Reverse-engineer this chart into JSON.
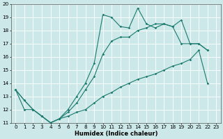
{
  "xlabel": "Humidex (Indice chaleur)",
  "xlim": [
    -0.5,
    23.5
  ],
  "ylim": [
    11,
    20
  ],
  "yticks": [
    11,
    12,
    13,
    14,
    15,
    16,
    17,
    18,
    19,
    20
  ],
  "xticks": [
    0,
    1,
    2,
    3,
    4,
    5,
    6,
    7,
    8,
    9,
    10,
    11,
    12,
    13,
    14,
    15,
    16,
    17,
    18,
    19,
    20,
    21,
    22,
    23
  ],
  "bg_color": "#cce8e8",
  "grid_color": "#ffffff",
  "line_color": "#1a7a6e",
  "line1_x": [
    0,
    1,
    2,
    3,
    4,
    5,
    6,
    7,
    8,
    9,
    10,
    11,
    12,
    13,
    14,
    15,
    16,
    17,
    18,
    19,
    20,
    21,
    22
  ],
  "line1_y": [
    13.5,
    12.7,
    12.0,
    11.5,
    11.0,
    11.3,
    12.0,
    13.0,
    14.0,
    15.5,
    19.2,
    19.0,
    18.3,
    18.2,
    19.7,
    18.5,
    18.2,
    18.5,
    18.3,
    18.8,
    17.0,
    17.0,
    16.5
  ],
  "line2_x": [
    0,
    1,
    2,
    3,
    4,
    5,
    6,
    7,
    8,
    9,
    10,
    11,
    12,
    13,
    14,
    15,
    16,
    17,
    18,
    19,
    20,
    21,
    22
  ],
  "line2_y": [
    13.5,
    12.7,
    12.0,
    11.5,
    11.0,
    11.3,
    11.8,
    12.5,
    13.5,
    14.5,
    16.2,
    17.2,
    17.5,
    17.5,
    18.0,
    18.2,
    18.5,
    18.5,
    18.3,
    17.0,
    17.0,
    17.0,
    16.5
  ],
  "line3_x": [
    0,
    1,
    2,
    3,
    4,
    5,
    6,
    7,
    8,
    9,
    10,
    11,
    12,
    13,
    14,
    15,
    16,
    17,
    18,
    19,
    20,
    21,
    22
  ],
  "line3_y": [
    13.5,
    12.0,
    12.0,
    11.5,
    11.0,
    11.3,
    11.5,
    11.8,
    12.0,
    12.5,
    13.0,
    13.3,
    13.7,
    14.0,
    14.3,
    14.5,
    14.7,
    15.0,
    15.3,
    15.5,
    15.8,
    16.5,
    14.0
  ],
  "end_x": 22,
  "end_y": 14.0
}
